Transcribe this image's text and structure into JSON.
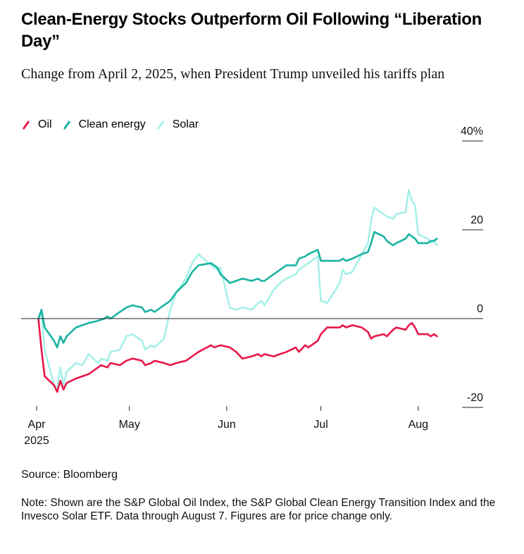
{
  "title": "Clean-Energy Stocks Outperform Oil Following “Liberation Day”",
  "subtitle": "Change from April 2, 2025, when President Trump unveiled his tariffs plan",
  "source": "Source: Bloomberg",
  "note": "Note: Shown are the S&P Global Oil Index, the S&P Global Clean Energy Transition Index and the Invesco Solar ETF. Data through August 7. Figures are for price change only.",
  "chart_data": {
    "type": "line",
    "title": "Clean-Energy Stocks Outperform Oil Following “Liberation Day”",
    "subtitle": "Change from April 2, 2025, when President Trump unveiled his tariffs plan",
    "ylim": [
      -20,
      40
    ],
    "y_ticks": [
      {
        "value": 40,
        "label": "40%"
      },
      {
        "value": 20,
        "label": "20"
      },
      {
        "value": 0,
        "label": "0"
      },
      {
        "value": -20,
        "label": "-20"
      }
    ],
    "x_ticks": [
      {
        "date": "2025-04-01",
        "label": "Apr",
        "sublabel": "2025"
      },
      {
        "date": "2025-05-01",
        "label": "May"
      },
      {
        "date": "2025-06-01",
        "label": "Jun"
      },
      {
        "date": "2025-07-01",
        "label": "Jul"
      },
      {
        "date": "2025-08-01",
        "label": "Aug"
      }
    ],
    "xlim": [
      "2025-04-01",
      "2025-08-08"
    ],
    "legend_position": "top-left",
    "grid": "zero line only",
    "series": [
      {
        "name": "Oil",
        "color": "#e8174a",
        "points": [
          [
            "2025-04-02",
            0
          ],
          [
            "2025-04-03",
            -7
          ],
          [
            "2025-04-04",
            -13
          ],
          [
            "2025-04-07",
            -15
          ],
          [
            "2025-04-08",
            -16.5
          ],
          [
            "2025-04-09",
            -14
          ],
          [
            "2025-04-10",
            -16
          ],
          [
            "2025-04-11",
            -14.5
          ],
          [
            "2025-04-14",
            -13.5
          ],
          [
            "2025-04-16",
            -13
          ],
          [
            "2025-04-18",
            -12.5
          ],
          [
            "2025-04-21",
            -11
          ],
          [
            "2025-04-22",
            -10.5
          ],
          [
            "2025-04-24",
            -11
          ],
          [
            "2025-04-25",
            -10
          ],
          [
            "2025-04-28",
            -10.5
          ],
          [
            "2025-04-30",
            -9.5
          ],
          [
            "2025-05-02",
            -9
          ],
          [
            "2025-05-05",
            -9.5
          ],
          [
            "2025-05-06",
            -10.5
          ],
          [
            "2025-05-08",
            -10
          ],
          [
            "2025-05-09",
            -9.5
          ],
          [
            "2025-05-12",
            -10
          ],
          [
            "2025-05-14",
            -10.5
          ],
          [
            "2025-05-16",
            -10
          ],
          [
            "2025-05-19",
            -9.5
          ],
          [
            "2025-05-21",
            -8.5
          ],
          [
            "2025-05-23",
            -7.5
          ],
          [
            "2025-05-27",
            -6
          ],
          [
            "2025-05-28",
            -6.5
          ],
          [
            "2025-05-30",
            -6
          ],
          [
            "2025-06-02",
            -6.5
          ],
          [
            "2025-06-04",
            -7.5
          ],
          [
            "2025-06-06",
            -9
          ],
          [
            "2025-06-09",
            -8.5
          ],
          [
            "2025-06-11",
            -8
          ],
          [
            "2025-06-12",
            -8.5
          ],
          [
            "2025-06-13",
            -8
          ],
          [
            "2025-06-16",
            -8.5
          ],
          [
            "2025-06-18",
            -8
          ],
          [
            "2025-06-20",
            -7.5
          ],
          [
            "2025-06-23",
            -6.5
          ],
          [
            "2025-06-24",
            -7.5
          ],
          [
            "2025-06-26",
            -6
          ],
          [
            "2025-06-27",
            -6.5
          ],
          [
            "2025-06-30",
            -5
          ],
          [
            "2025-07-01",
            -3.5
          ],
          [
            "2025-07-03",
            -2
          ],
          [
            "2025-07-07",
            -2
          ],
          [
            "2025-07-08",
            -1.5
          ],
          [
            "2025-07-09",
            -2
          ],
          [
            "2025-07-11",
            -1.5
          ],
          [
            "2025-07-14",
            -2
          ],
          [
            "2025-07-16",
            -3
          ],
          [
            "2025-07-17",
            -4.5
          ],
          [
            "2025-07-18",
            -4
          ],
          [
            "2025-07-21",
            -3.5
          ],
          [
            "2025-07-22",
            -4
          ],
          [
            "2025-07-24",
            -2.5
          ],
          [
            "2025-07-25",
            -2
          ],
          [
            "2025-07-28",
            -2.5
          ],
          [
            "2025-07-29",
            -1.5
          ],
          [
            "2025-07-30",
            -1
          ],
          [
            "2025-07-31",
            -2
          ],
          [
            "2025-08-01",
            -3.5
          ],
          [
            "2025-08-04",
            -3.5
          ],
          [
            "2025-08-05",
            -4
          ],
          [
            "2025-08-06",
            -3.5
          ],
          [
            "2025-08-07",
            -4
          ]
        ]
      },
      {
        "name": "Clean energy",
        "color": "#19b3a0",
        "points": [
          [
            "2025-04-02",
            0
          ],
          [
            "2025-04-03",
            2
          ],
          [
            "2025-04-04",
            -2
          ],
          [
            "2025-04-07",
            -5
          ],
          [
            "2025-04-08",
            -6.5
          ],
          [
            "2025-04-09",
            -4
          ],
          [
            "2025-04-10",
            -5.5
          ],
          [
            "2025-04-11",
            -4
          ],
          [
            "2025-04-14",
            -2
          ],
          [
            "2025-04-16",
            -1.5
          ],
          [
            "2025-04-18",
            -1
          ],
          [
            "2025-04-21",
            -0.5
          ],
          [
            "2025-04-23",
            0
          ],
          [
            "2025-04-24",
            0.5
          ],
          [
            "2025-04-25",
            0
          ],
          [
            "2025-04-28",
            1.5
          ],
          [
            "2025-04-30",
            2.5
          ],
          [
            "2025-05-02",
            3
          ],
          [
            "2025-05-05",
            2.5
          ],
          [
            "2025-05-06",
            1.5
          ],
          [
            "2025-05-08",
            2
          ],
          [
            "2025-05-09",
            1.5
          ],
          [
            "2025-05-12",
            3
          ],
          [
            "2025-05-14",
            4
          ],
          [
            "2025-05-16",
            6
          ],
          [
            "2025-05-19",
            8
          ],
          [
            "2025-05-21",
            10.5
          ],
          [
            "2025-05-23",
            12
          ],
          [
            "2025-05-27",
            12.5
          ],
          [
            "2025-05-29",
            11.5
          ],
          [
            "2025-05-30",
            10
          ],
          [
            "2025-06-02",
            8
          ],
          [
            "2025-06-04",
            8.5
          ],
          [
            "2025-06-06",
            9
          ],
          [
            "2025-06-09",
            8.5
          ],
          [
            "2025-06-11",
            9
          ],
          [
            "2025-06-12",
            8.5
          ],
          [
            "2025-06-13",
            8.5
          ],
          [
            "2025-06-16",
            10
          ],
          [
            "2025-06-18",
            11
          ],
          [
            "2025-06-20",
            12
          ],
          [
            "2025-06-23",
            12
          ],
          [
            "2025-06-24",
            13.5
          ],
          [
            "2025-06-26",
            14
          ],
          [
            "2025-06-27",
            14.5
          ],
          [
            "2025-06-30",
            15.5
          ],
          [
            "2025-07-01",
            13
          ],
          [
            "2025-07-03",
            13
          ],
          [
            "2025-07-07",
            13
          ],
          [
            "2025-07-08",
            13.5
          ],
          [
            "2025-07-09",
            13
          ],
          [
            "2025-07-11",
            13.5
          ],
          [
            "2025-07-14",
            14.5
          ],
          [
            "2025-07-16",
            15
          ],
          [
            "2025-07-17",
            17
          ],
          [
            "2025-07-18",
            19.5
          ],
          [
            "2025-07-21",
            18.5
          ],
          [
            "2025-07-22",
            17.5
          ],
          [
            "2025-07-24",
            16.5
          ],
          [
            "2025-07-25",
            17
          ],
          [
            "2025-07-28",
            18
          ],
          [
            "2025-07-29",
            19
          ],
          [
            "2025-07-30",
            18.5
          ],
          [
            "2025-07-31",
            18
          ],
          [
            "2025-08-01",
            17
          ],
          [
            "2025-08-04",
            17
          ],
          [
            "2025-08-05",
            17.5
          ],
          [
            "2025-08-06",
            17.5
          ],
          [
            "2025-08-07",
            18
          ]
        ]
      },
      {
        "name": "Solar",
        "color": "#a6f0e8",
        "points": [
          [
            "2025-04-02",
            0
          ],
          [
            "2025-04-03",
            1
          ],
          [
            "2025-04-04",
            -7
          ],
          [
            "2025-04-07",
            -15
          ],
          [
            "2025-04-08",
            -15.5
          ],
          [
            "2025-04-09",
            -11
          ],
          [
            "2025-04-10",
            -15
          ],
          [
            "2025-04-11",
            -12
          ],
          [
            "2025-04-14",
            -10
          ],
          [
            "2025-04-16",
            -10.5
          ],
          [
            "2025-04-18",
            -8
          ],
          [
            "2025-04-21",
            -10
          ],
          [
            "2025-04-22",
            -9
          ],
          [
            "2025-04-24",
            -9.5
          ],
          [
            "2025-04-25",
            -7.5
          ],
          [
            "2025-04-28",
            -7
          ],
          [
            "2025-04-30",
            -4
          ],
          [
            "2025-05-02",
            -3.5
          ],
          [
            "2025-05-05",
            -5
          ],
          [
            "2025-05-06",
            -7
          ],
          [
            "2025-05-08",
            -6
          ],
          [
            "2025-05-09",
            -6.5
          ],
          [
            "2025-05-12",
            -4.5
          ],
          [
            "2025-05-14",
            2
          ],
          [
            "2025-05-16",
            6
          ],
          [
            "2025-05-19",
            9
          ],
          [
            "2025-05-21",
            12.5
          ],
          [
            "2025-05-23",
            14.5
          ],
          [
            "2025-05-27",
            12
          ],
          [
            "2025-05-29",
            11
          ],
          [
            "2025-05-30",
            11.5
          ],
          [
            "2025-06-02",
            2.5
          ],
          [
            "2025-06-04",
            2
          ],
          [
            "2025-06-06",
            2.5
          ],
          [
            "2025-06-09",
            2
          ],
          [
            "2025-06-11",
            3.5
          ],
          [
            "2025-06-12",
            4
          ],
          [
            "2025-06-13",
            3
          ],
          [
            "2025-06-16",
            6.5
          ],
          [
            "2025-06-18",
            8
          ],
          [
            "2025-06-20",
            9
          ],
          [
            "2025-06-23",
            10
          ],
          [
            "2025-06-24",
            11
          ],
          [
            "2025-06-26",
            12
          ],
          [
            "2025-06-27",
            12.5
          ],
          [
            "2025-06-30",
            14
          ],
          [
            "2025-07-01",
            4
          ],
          [
            "2025-07-03",
            3.5
          ],
          [
            "2025-07-07",
            8
          ],
          [
            "2025-07-08",
            11
          ],
          [
            "2025-07-09",
            10
          ],
          [
            "2025-07-11",
            10.5
          ],
          [
            "2025-07-14",
            14.5
          ],
          [
            "2025-07-16",
            17
          ],
          [
            "2025-07-17",
            22
          ],
          [
            "2025-07-18",
            25
          ],
          [
            "2025-07-21",
            23.5
          ],
          [
            "2025-07-22",
            23
          ],
          [
            "2025-07-24",
            22.5
          ],
          [
            "2025-07-25",
            23.5
          ],
          [
            "2025-07-28",
            24
          ],
          [
            "2025-07-29",
            29
          ],
          [
            "2025-07-30",
            26.5
          ],
          [
            "2025-07-31",
            25.5
          ],
          [
            "2025-08-01",
            19
          ],
          [
            "2025-08-04",
            18
          ],
          [
            "2025-08-05",
            17
          ],
          [
            "2025-08-06",
            17.5
          ],
          [
            "2025-08-07",
            16.5
          ]
        ]
      }
    ]
  }
}
